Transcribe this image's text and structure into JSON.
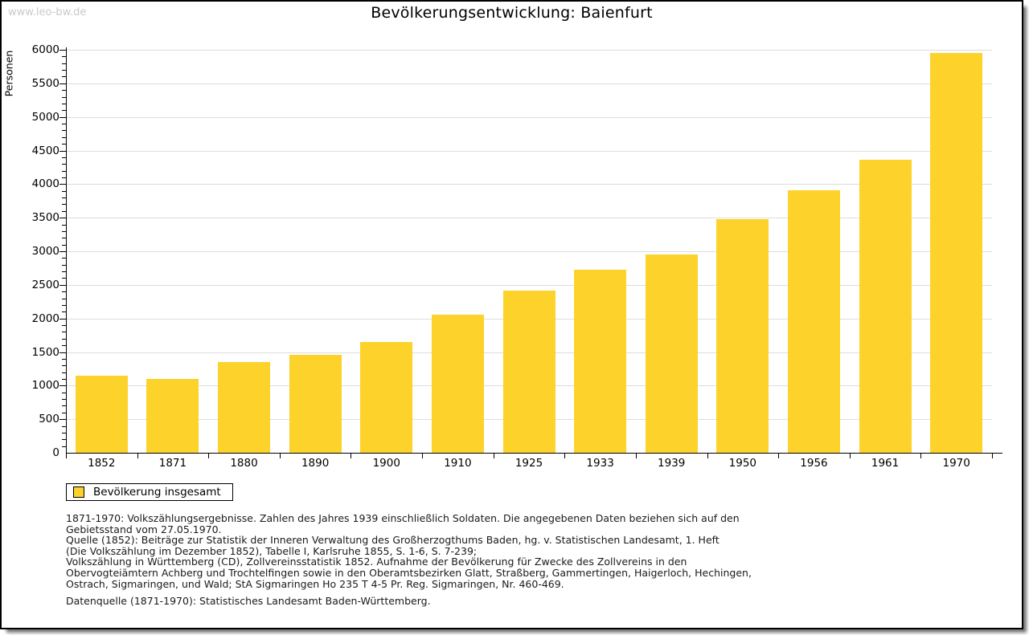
{
  "watermark": "www.leo-bw.de",
  "title": "Bevölkerungsentwicklung: Baienfurt",
  "chart_data": {
    "type": "bar",
    "title": "Bevölkerungsentwicklung: Baienfurt",
    "xlabel": "",
    "ylabel": "Personen",
    "categories": [
      "1852",
      "1871",
      "1880",
      "1890",
      "1900",
      "1910",
      "1925",
      "1933",
      "1939",
      "1950",
      "1956",
      "1961",
      "1970"
    ],
    "values": [
      1150,
      1095,
      1350,
      1460,
      1650,
      2050,
      2410,
      2720,
      2950,
      3475,
      3905,
      4365,
      5950
    ],
    "series_name": "Bevölkerung insgesamt",
    "ylim": [
      0,
      6000
    ],
    "ytick_step": 500,
    "yminortick_step": 100,
    "grid": true,
    "bar_color": "#FCD22B",
    "gridline_color": "#dddddd",
    "legend_position": "bottom-left"
  },
  "legend": {
    "items": [
      {
        "label": "Bevölkerung insgesamt",
        "color": "#FCD22B"
      }
    ]
  },
  "footnotes": {
    "lines": [
      "1871-1970: Volkszählungsergebnisse. Zahlen des Jahres 1939 einschließlich Soldaten. Die angegebenen Daten beziehen sich auf den",
      "Gebietsstand vom 27.05.1970.",
      "Quelle (1852): Beiträge zur Statistik der Inneren Verwaltung des Großherzogthums Baden, hg. v. Statistischen Landesamt, 1. Heft",
      "(Die Volkszählung im Dezember 1852), Tabelle I, Karlsruhe 1855, S. 1-6, S. 7-239;",
      "Volkszählung in Württemberg (CD), Zollvereinsstatistik 1852. Aufnahme der Bevölkerung für Zwecke des Zollvereins in den",
      "Obervogteiämtern Achberg und Trochtelfingen sowie in den Oberamtsbezirken Glatt, Straßberg, Gammertingen, Haigerloch, Hechingen,",
      "Ostrach, Sigmaringen, und Wald; StA Sigmaringen Ho 235 T 4-5 Pr. Reg. Sigmaringen, Nr. 460-469."
    ],
    "datasource": "Datenquelle (1871-1970): Statistisches Landesamt Baden-Württemberg."
  }
}
